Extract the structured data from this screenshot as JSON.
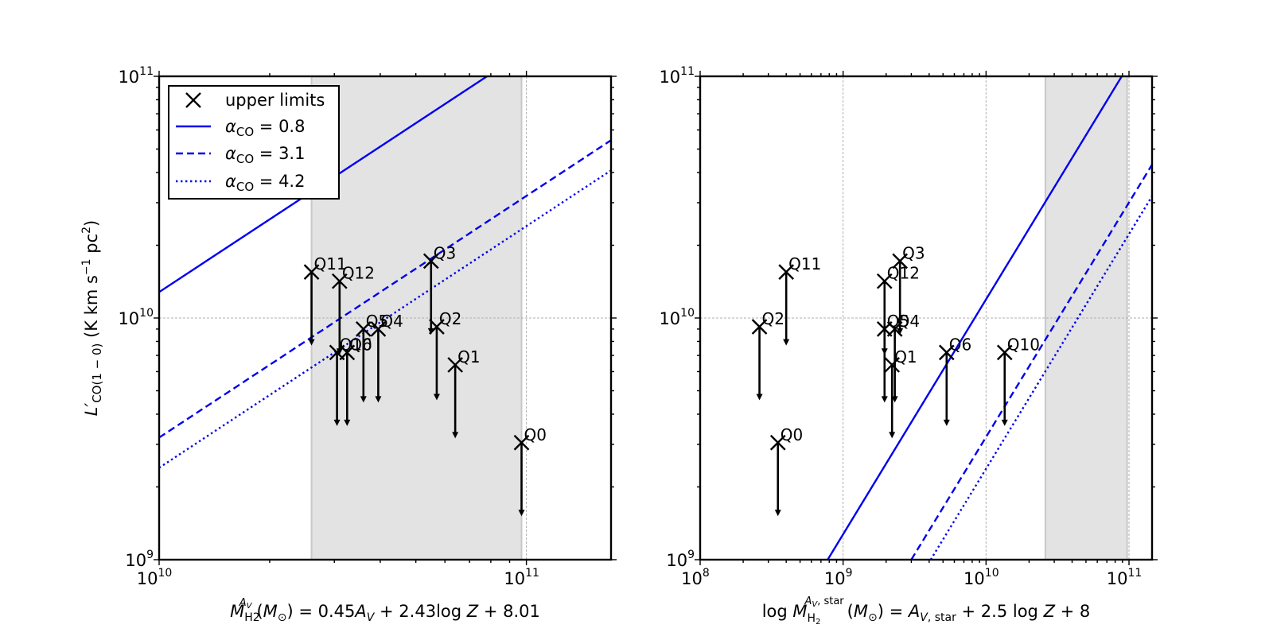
{
  "chart_data": [
    {
      "type": "scatter",
      "x_scale": "log",
      "y_scale": "log",
      "xlim": [
        10000000000.0,
        170000000000.0
      ],
      "ylim": [
        1000000000.0,
        100000000000.0
      ],
      "xlabel": "M_H2^{A_V}(M_⊙) = 0.45A_V + 2.43log Z + 8.01",
      "ylabel": "L′_CO(1−0) (K km s⁻¹ pc²)",
      "x_ticks": [
        {
          "value": 10000000000.0,
          "base": "10",
          "exp": "10"
        },
        {
          "value": 100000000000.0,
          "base": "10",
          "exp": "11"
        }
      ],
      "y_ticks": [
        {
          "value": 1000000000.0,
          "base": "10",
          "exp": "9"
        },
        {
          "value": 10000000000.0,
          "base": "10",
          "exp": "10"
        },
        {
          "value": 100000000000.0,
          "base": "10",
          "exp": "11"
        }
      ],
      "shaded_x_range": [
        26000000000.0,
        97000000000.0
      ],
      "points": [
        {
          "label": "Q11",
          "x": 26000000000.0,
          "y": 15500000000.0
        },
        {
          "label": "Q12",
          "x": 31000000000.0,
          "y": 14200000000.0
        },
        {
          "label": "Q3",
          "x": 55000000000.0,
          "y": 17200000000.0
        },
        {
          "label": "Q5",
          "x": 36000000000.0,
          "y": 9000000000.0
        },
        {
          "label": "Q4",
          "x": 39500000000.0,
          "y": 9000000000.0
        },
        {
          "label": "Q2",
          "x": 57000000000.0,
          "y": 9200000000.0
        },
        {
          "label": "Q10",
          "x": 30500000000.0,
          "y": 7200000000.0
        },
        {
          "label": "Q6",
          "x": 32500000000.0,
          "y": 7200000000.0
        },
        {
          "label": "Q1",
          "x": 64000000000.0,
          "y": 6400000000.0
        },
        {
          "label": "Q0",
          "x": 97000000000.0,
          "y": 3050000000.0
        }
      ],
      "lines": [
        {
          "name": "α_CO = 0.8",
          "style": "solid",
          "y_at_xmin": 12800000000.0,
          "slope": 1.0
        },
        {
          "name": "α_CO = 3.1",
          "style": "dashed",
          "y_at_xmin": 3200000000.0,
          "slope": 1.0
        },
        {
          "name": "α_CO = 4.2",
          "style": "dotted",
          "y_at_xmin": 2400000000.0,
          "slope": 1.0
        }
      ],
      "legend": {
        "location": "top-left",
        "entries": [
          {
            "marker": "x",
            "label": "upper limits"
          },
          {
            "style": "solid",
            "label": "α_CO = 0.8",
            "sym": "α",
            "sub": "CO",
            "val": " = 0.8"
          },
          {
            "style": "dashed",
            "label": "α_CO = 3.1",
            "sym": "α",
            "sub": "CO",
            "val": " = 3.1"
          },
          {
            "style": "dotted",
            "label": "α_CO = 4.2",
            "sym": "α",
            "sub": "CO",
            "val": " = 4.2"
          }
        ]
      }
    },
    {
      "type": "scatter",
      "x_scale": "log",
      "y_scale": "log",
      "xlim": [
        100000000.0,
        145000000000.0
      ],
      "ylim": [
        1000000000.0,
        100000000000.0
      ],
      "xlabel": "log M_H2^{A_V,star}(M_⊙) = A_V,star + 2.5 log Z + 8",
      "ylabel": "",
      "x_ticks": [
        {
          "value": 100000000.0,
          "base": "10",
          "exp": "8"
        },
        {
          "value": 1000000000.0,
          "base": "10",
          "exp": "9"
        },
        {
          "value": 10000000000.0,
          "base": "10",
          "exp": "10"
        },
        {
          "value": 100000000000.0,
          "base": "10",
          "exp": "11"
        }
      ],
      "y_ticks": [
        {
          "value": 1000000000.0,
          "base": "10",
          "exp": "9"
        },
        {
          "value": 10000000000.0,
          "base": "10",
          "exp": "10"
        },
        {
          "value": 100000000000.0,
          "base": "10",
          "exp": "11"
        }
      ],
      "shaded_x_range": [
        26000000000.0,
        97000000000.0
      ],
      "points": [
        {
          "label": "Q11",
          "x": 400000000.0,
          "y": 15500000000.0
        },
        {
          "label": "Q12",
          "x": 1950000000.0,
          "y": 14200000000.0
        },
        {
          "label": "Q3",
          "x": 2500000000.0,
          "y": 17200000000.0
        },
        {
          "label": "Q2",
          "x": 260000000.0,
          "y": 9200000000.0
        },
        {
          "label": "Q5",
          "x": 1950000000.0,
          "y": 9000000000.0
        },
        {
          "label": "Q4",
          "x": 2300000000.0,
          "y": 9000000000.0
        },
        {
          "label": "Q1",
          "x": 2200000000.0,
          "y": 6400000000.0
        },
        {
          "label": "Q6",
          "x": 5300000000.0,
          "y": 7200000000.0
        },
        {
          "label": "Q10",
          "x": 13500000000.0,
          "y": 7200000000.0
        },
        {
          "label": "Q0",
          "x": 350000000.0,
          "y": 3050000000.0
        }
      ],
      "lines": [
        {
          "name": "α_CO = 0.8",
          "style": "solid",
          "x_at_ymin": 780000000.0,
          "x_at_ymax": 89000000000.0
        },
        {
          "name": "α_CO = 3.1",
          "style": "dashed",
          "x_at_ymin": 3000000000.0,
          "x_at_ymax": 345000000000.0
        },
        {
          "name": "α_CO = 4.2",
          "style": "dotted",
          "x_at_ymin": 4100000000.0,
          "x_at_ymax": 470000000000.0
        }
      ]
    }
  ]
}
